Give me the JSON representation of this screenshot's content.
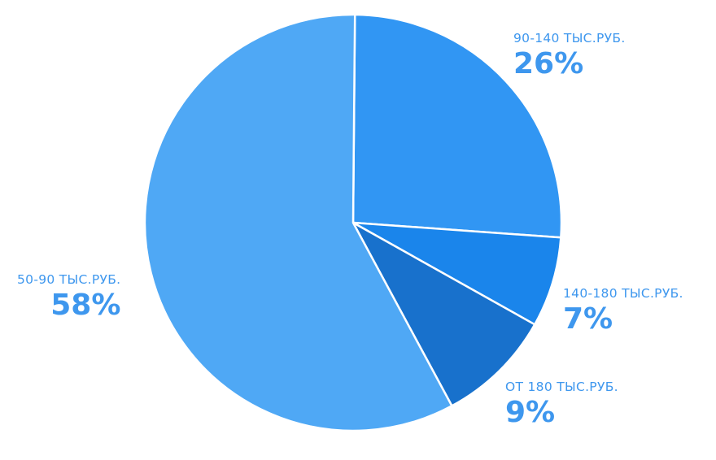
{
  "chart_data": {
    "type": "pie",
    "title": "",
    "slices": [
      {
        "label": "90-140 ТЫС.РУБ.",
        "value": 26,
        "value_label": "26%",
        "color": "#3196F3",
        "label_color": "#3E97EE"
      },
      {
        "label": "140-180 ТЫС.РУБ.",
        "value": 7,
        "value_label": "7%",
        "color": "#1A85EB",
        "label_color": "#3E97EE"
      },
      {
        "label": "ОТ 180 ТЫС.РУБ.",
        "value": 9,
        "value_label": "9%",
        "color": "#1871CC",
        "label_color": "#3E97EE"
      },
      {
        "label": "50-90 ТЫС.РУБ.",
        "value": 58,
        "value_label": "58%",
        "color": "#4FA8F5",
        "label_color": "#3E97EE"
      }
    ],
    "start_angle_deg": 0.5,
    "direction": "clockwise",
    "slice_border_color": "#ffffff",
    "legend": "none"
  }
}
